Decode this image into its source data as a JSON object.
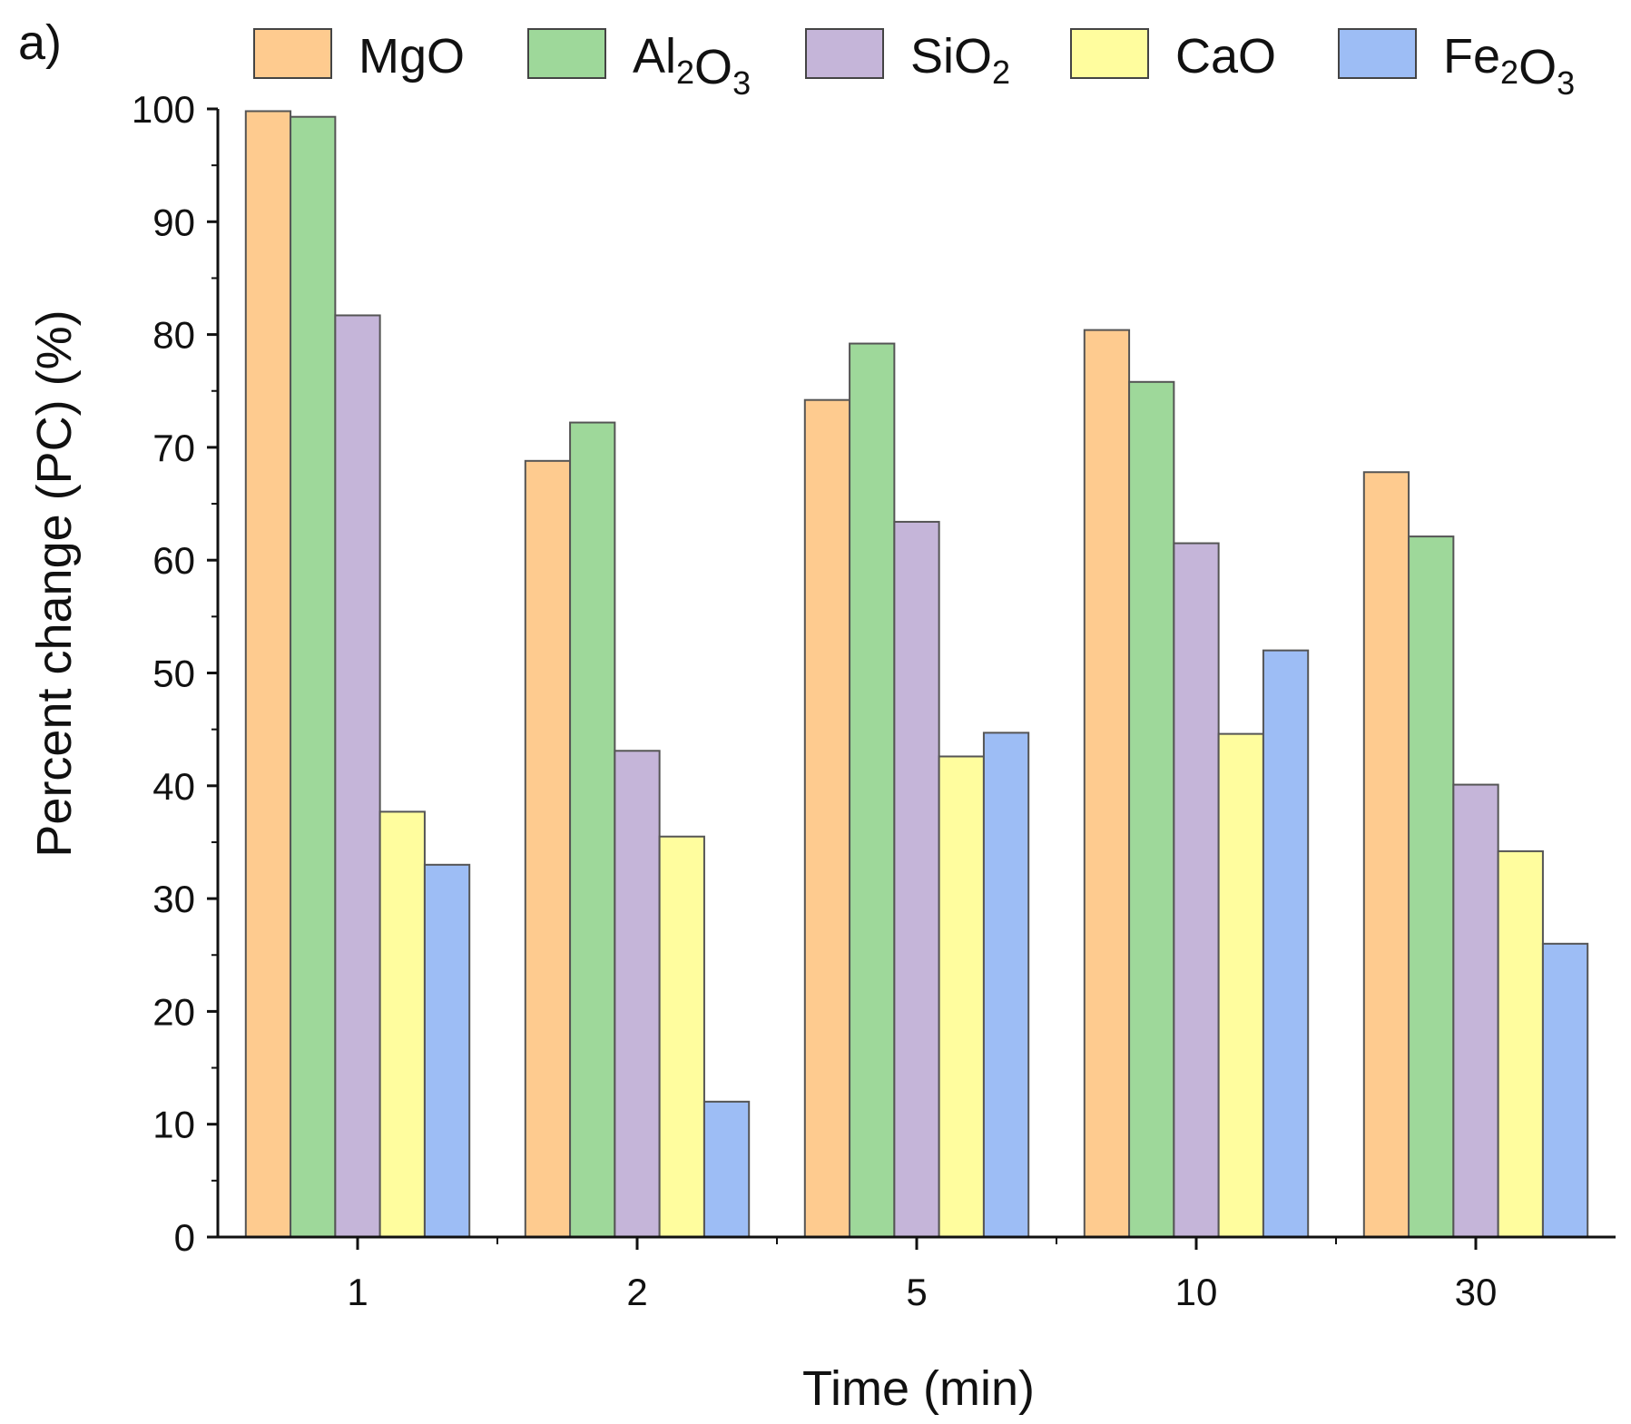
{
  "panel_label": "a)",
  "chart_data": {
    "type": "bar",
    "title": "",
    "xlabel": "Time (min)",
    "ylabel": "Percent change (PC) (%)",
    "categories": [
      "1",
      "2",
      "5",
      "10",
      "30"
    ],
    "ylim": [
      0,
      100
    ],
    "yticks": [
      "0",
      "10",
      "20",
      "30",
      "40",
      "50",
      "60",
      "70",
      "80",
      "90",
      "100"
    ],
    "legend_position": "top",
    "series": [
      {
        "name": "MgO",
        "base": "MgO",
        "sub1": "",
        "mid": "",
        "sub2": "",
        "color": "#FECB8F",
        "values": [
          99.8,
          68.8,
          74.2,
          80.4,
          67.8
        ]
      },
      {
        "name": "Al2O3",
        "base": "Al",
        "sub1": "2",
        "mid": "O",
        "sub2": "3",
        "color": "#9ED89A",
        "values": [
          99.3,
          72.2,
          79.2,
          75.8,
          62.1
        ]
      },
      {
        "name": "SiO2",
        "base": "SiO",
        "sub1": "2",
        "mid": "",
        "sub2": "",
        "color": "#C5B5D9",
        "values": [
          81.7,
          43.1,
          63.4,
          61.5,
          40.1
        ]
      },
      {
        "name": "CaO",
        "base": "CaO",
        "sub1": "",
        "mid": "",
        "sub2": "",
        "color": "#FFFD9E",
        "values": [
          37.7,
          35.5,
          42.6,
          44.6,
          34.2
        ]
      },
      {
        "name": "Fe2O3",
        "base": "Fe",
        "sub1": "2",
        "mid": "O",
        "sub2": "3",
        "color": "#9DBDF5",
        "values": [
          33.0,
          12.0,
          44.7,
          52.0,
          26.0
        ]
      }
    ]
  }
}
